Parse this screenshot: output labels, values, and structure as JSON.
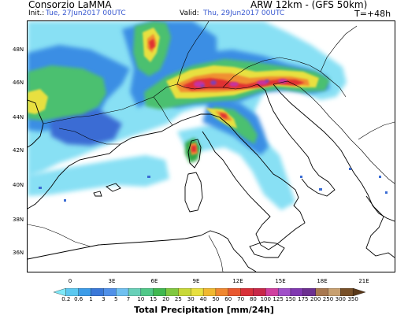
{
  "header": {
    "org": "Consorzio LaMMA",
    "model": "ARW 12km - (GFS 50km)",
    "init_label": "Init.:",
    "init_value": "Tue, 27Jun2017 00UTC",
    "valid_label": "Valid:",
    "valid_value": "Thu, 29Jun2017 00UTC",
    "lead_time": "T=+48h"
  },
  "lat_labels": [
    "48N",
    "46N",
    "44N",
    "42N",
    "40N",
    "38N",
    "36N"
  ],
  "lon_labels": [
    "0",
    "3E",
    "6E",
    "9E",
    "12E",
    "15E",
    "18E",
    "21E"
  ],
  "colorbar": {
    "title": "Total Precipitation [mm/24h]",
    "levels": [
      "0.2",
      "0.6",
      "1",
      "3",
      "5",
      "7",
      "10",
      "15",
      "20",
      "25",
      "30",
      "40",
      "50",
      "60",
      "70",
      "80",
      "100",
      "125",
      "150",
      "175",
      "200",
      "250",
      "300",
      "350"
    ],
    "colors": [
      "#7ee8f8",
      "#5cc8f0",
      "#3c9ce8",
      "#3a78d8",
      "#5090e8",
      "#70c0f0",
      "#68d0b8",
      "#50c888",
      "#40b850",
      "#80c840",
      "#c8d838",
      "#e8e040",
      "#f0b830",
      "#f08830",
      "#e85830",
      "#d83038",
      "#c82848",
      "#d040a0",
      "#a050c8",
      "#8038b0",
      "#6c3090",
      "#a87850",
      "#c8a070",
      "#785028",
      "#5a3818"
    ]
  },
  "map": {
    "field": "precipitation",
    "colors": {
      "light": "#88e0f4",
      "light2": "#6cc8ee",
      "mid": "#3a8ee4",
      "mid2": "#3a6cd4",
      "green": "#4cc070",
      "green2": "#30a848",
      "yellow": "#e8e040",
      "orange": "#f09030",
      "red": "#e03030",
      "magenta": "#c830a0",
      "purple": "#8040b8"
    }
  }
}
